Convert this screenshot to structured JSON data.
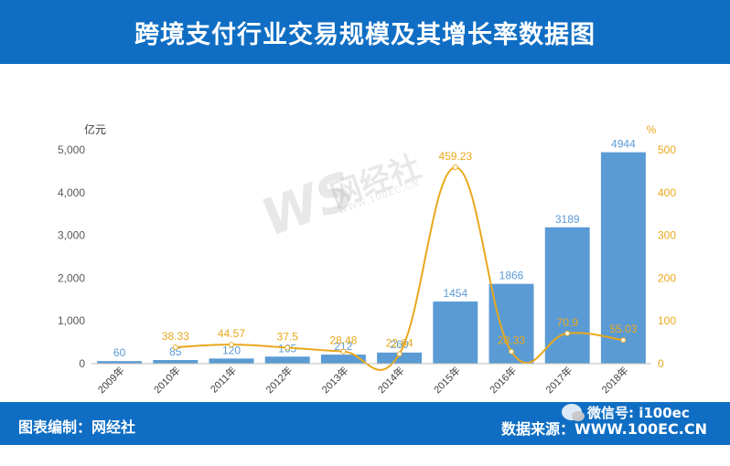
{
  "header": {
    "title": "跨境支付行业交易规模及其增长率数据图"
  },
  "footer": {
    "left_label": "图表编制：网经社",
    "right_label": "数据来源：WWW.100EC.CN",
    "wechat_label": "微信号: i100ec"
  },
  "watermark": {
    "logo": "WS",
    "text": "网经社",
    "url": "WWW.100EC.CN"
  },
  "chart_data": {
    "type": "bar",
    "categories": [
      "2009年",
      "2010年",
      "2011年",
      "2012年",
      "2013年",
      "2014年",
      "2015年",
      "2016年",
      "2017年",
      "2018年"
    ],
    "series": [
      {
        "values": [
          60,
          85,
          120,
          165,
          212,
          260,
          1454,
          1866,
          3189,
          4944
        ]
      },
      {
        "type": "line",
        "axis": "right",
        "values": [
          null,
          38.33,
          44.57,
          37.5,
          28.48,
          22.64,
          459.23,
          28.33,
          70.9,
          55.03
        ]
      }
    ],
    "bar_labels": [
      "60",
      "85",
      "120",
      "165",
      "212",
      "260",
      "1454",
      "1866",
      "3189",
      "4944"
    ],
    "line_labels": [
      "",
      "38.33",
      "44.57",
      "37.5",
      "28.48",
      "22.64",
      "459.23",
      "28.33",
      "70.9",
      "55.03"
    ],
    "left_axis": {
      "unit": "亿元",
      "ticks": [
        "0",
        "1,000",
        "2,000",
        "3,000",
        "4,000",
        "5,000"
      ],
      "ylim": [
        0,
        5000
      ]
    },
    "right_axis": {
      "unit": "%",
      "ticks": [
        "0",
        "100",
        "200",
        "300",
        "400",
        "500"
      ],
      "ylim": [
        0,
        500
      ]
    },
    "colors": {
      "bar": "#5b9bd5",
      "line": "#e9a81c",
      "bar_label": "#5b9bd5",
      "line_label": "#e9a81c"
    },
    "grid": false,
    "legend": "none"
  }
}
